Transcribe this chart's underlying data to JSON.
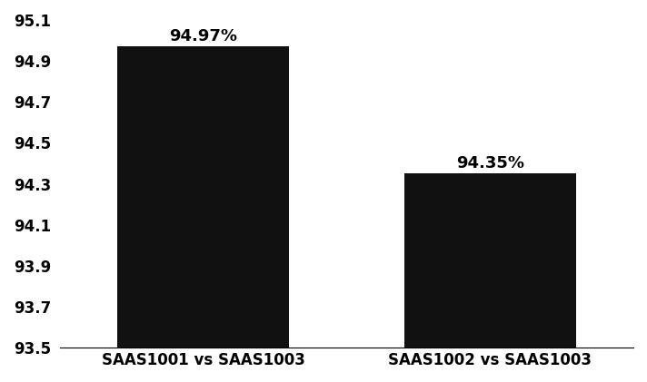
{
  "categories": [
    "SAAS1001 vs SAAS1003",
    "SAAS1002 vs SAAS1003"
  ],
  "values": [
    94.97,
    94.35
  ],
  "labels": [
    "94.97%",
    "94.35%"
  ],
  "bar_color": "#111111",
  "ylim": [
    93.5,
    95.1
  ],
  "yticks": [
    93.5,
    93.7,
    93.9,
    94.1,
    94.3,
    94.5,
    94.7,
    94.9,
    95.1
  ],
  "label_fontsize": 13,
  "tick_fontsize": 12,
  "xtick_fontsize": 12,
  "bar_width": 0.3,
  "x_positions": [
    0.25,
    0.75
  ],
  "xlim": [
    0.0,
    1.0
  ]
}
